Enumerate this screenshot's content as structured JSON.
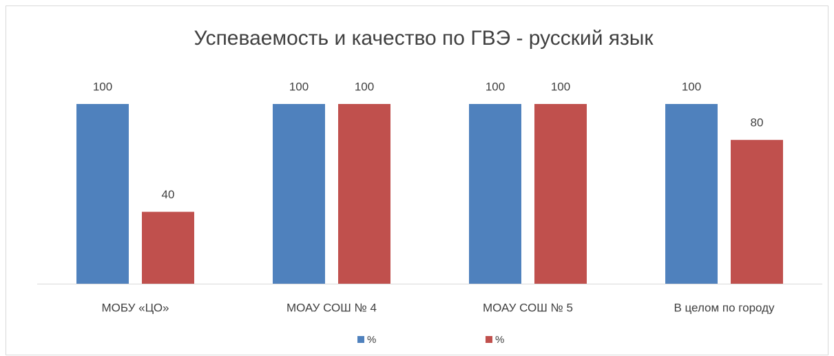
{
  "chart_data": {
    "type": "bar",
    "title": "Успеваемость и качество по ГВЭ - русский язык",
    "categories": [
      "МОБУ «ЦО»",
      "МОАУ СОШ № 4",
      "МОАУ СОШ № 5",
      "В целом по городу"
    ],
    "series": [
      {
        "name": "%",
        "color": "#4f81bd",
        "values": [
          100,
          100,
          100,
          100
        ]
      },
      {
        "name": "%",
        "color": "#c0504d",
        "values": [
          40,
          100,
          100,
          80
        ]
      }
    ],
    "ylim": [
      0,
      100
    ],
    "legend": "bottom"
  }
}
